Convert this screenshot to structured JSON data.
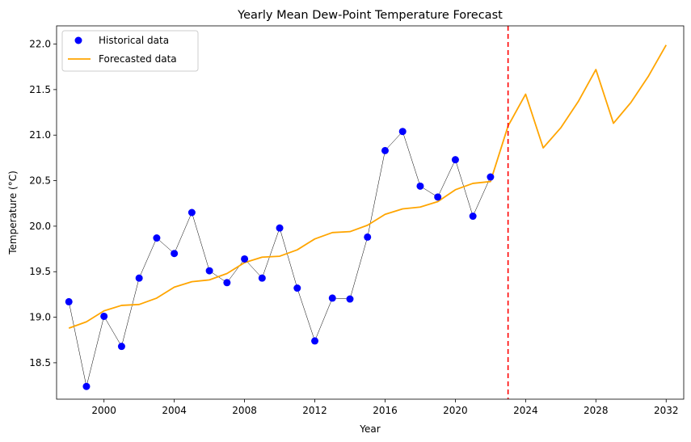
{
  "chart_data": {
    "type": "line",
    "title": "Yearly Mean Dew-Point Temperature Forecast",
    "xlabel": "Year",
    "ylabel": "Temperature (°C)",
    "xlim": [
      1997.3,
      2033.0
    ],
    "ylim": [
      18.1,
      22.2
    ],
    "xticks": [
      2000,
      2004,
      2008,
      2012,
      2016,
      2020,
      2024,
      2028,
      2032
    ],
    "yticks": [
      18.5,
      19.0,
      19.5,
      20.0,
      20.5,
      21.0,
      21.5,
      22.0
    ],
    "ytick_labels": [
      "18.5",
      "19.0",
      "19.5",
      "20.0",
      "20.5",
      "21.0",
      "21.5",
      "22.0"
    ],
    "grid": false,
    "legend_position": "top-left",
    "series": [
      {
        "name": "Historical data",
        "kind": "scatter",
        "color": "#0000ff",
        "connector_color": "#000000",
        "x": [
          1998,
          1999,
          2000,
          2001,
          2002,
          2003,
          2004,
          2005,
          2006,
          2007,
          2008,
          2009,
          2010,
          2011,
          2012,
          2013,
          2014,
          2015,
          2016,
          2017,
          2018,
          2019,
          2020,
          2021,
          2022
        ],
        "y": [
          19.17,
          18.24,
          19.01,
          18.68,
          19.43,
          19.87,
          19.7,
          20.15,
          19.51,
          19.38,
          19.64,
          19.43,
          19.98,
          19.32,
          18.74,
          19.21,
          19.2,
          19.88,
          20.83,
          21.04,
          20.44,
          20.32,
          20.73,
          20.11,
          20.54
        ]
      },
      {
        "name": "Forecasted data",
        "kind": "line",
        "color": "#ffa500",
        "x": [
          1998,
          1999,
          2000,
          2001,
          2002,
          2003,
          2004,
          2005,
          2006,
          2007,
          2008,
          2009,
          2010,
          2011,
          2012,
          2013,
          2014,
          2015,
          2016,
          2017,
          2018,
          2019,
          2020,
          2021,
          2022,
          2023,
          2024,
          2025,
          2026,
          2027,
          2028,
          2029,
          2030,
          2031,
          2032
        ],
        "y": [
          18.88,
          18.95,
          19.07,
          19.13,
          19.14,
          19.21,
          19.33,
          19.39,
          19.41,
          19.48,
          19.6,
          19.66,
          19.67,
          19.74,
          19.86,
          19.93,
          19.94,
          20.01,
          20.13,
          20.19,
          20.21,
          20.27,
          20.4,
          20.47,
          20.49,
          21.1,
          21.45,
          20.86,
          21.08,
          21.37,
          21.72,
          21.13,
          21.36,
          21.65,
          21.99
        ]
      }
    ],
    "annotations": [
      {
        "type": "vline",
        "x": 2023,
        "color": "#ff0000",
        "style": "dashed"
      }
    ]
  }
}
